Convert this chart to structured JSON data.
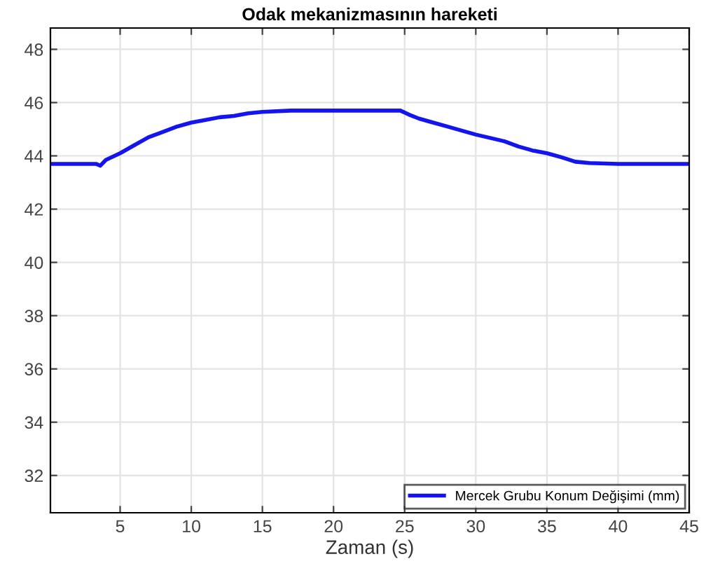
{
  "chart_data": {
    "type": "line",
    "title": "Odak mekanizmasının hareketi",
    "xlabel": "Zaman (s)",
    "xlim": [
      0.1,
      45
    ],
    "ylim": [
      30.6,
      48.8
    ],
    "xticks": [
      5,
      10,
      15,
      20,
      25,
      30,
      35,
      40,
      45
    ],
    "yticks": [
      32,
      34,
      36,
      38,
      40,
      42,
      44,
      46,
      48
    ],
    "grid": true,
    "legend": "bottom right",
    "series": [
      {
        "name": "Mercek Grubu Konum Değişimi (mm)",
        "color": "#1414f0",
        "x": [
          0.1,
          2,
          3.3,
          3.6,
          4,
          5,
          6,
          7,
          8,
          9,
          10,
          11,
          12,
          13,
          14,
          15,
          17,
          20,
          24.7,
          25.3,
          26,
          27,
          28,
          30,
          32,
          33,
          34,
          35,
          36,
          37,
          38,
          40,
          42,
          45
        ],
        "values": [
          43.7,
          43.7,
          43.7,
          43.63,
          43.85,
          44.1,
          44.4,
          44.7,
          44.9,
          45.1,
          45.25,
          45.35,
          45.45,
          45.5,
          45.6,
          45.65,
          45.7,
          45.7,
          45.7,
          45.55,
          45.4,
          45.25,
          45.1,
          44.8,
          44.55,
          44.35,
          44.2,
          44.1,
          43.95,
          43.78,
          43.73,
          43.7,
          43.7,
          43.7
        ]
      }
    ]
  }
}
